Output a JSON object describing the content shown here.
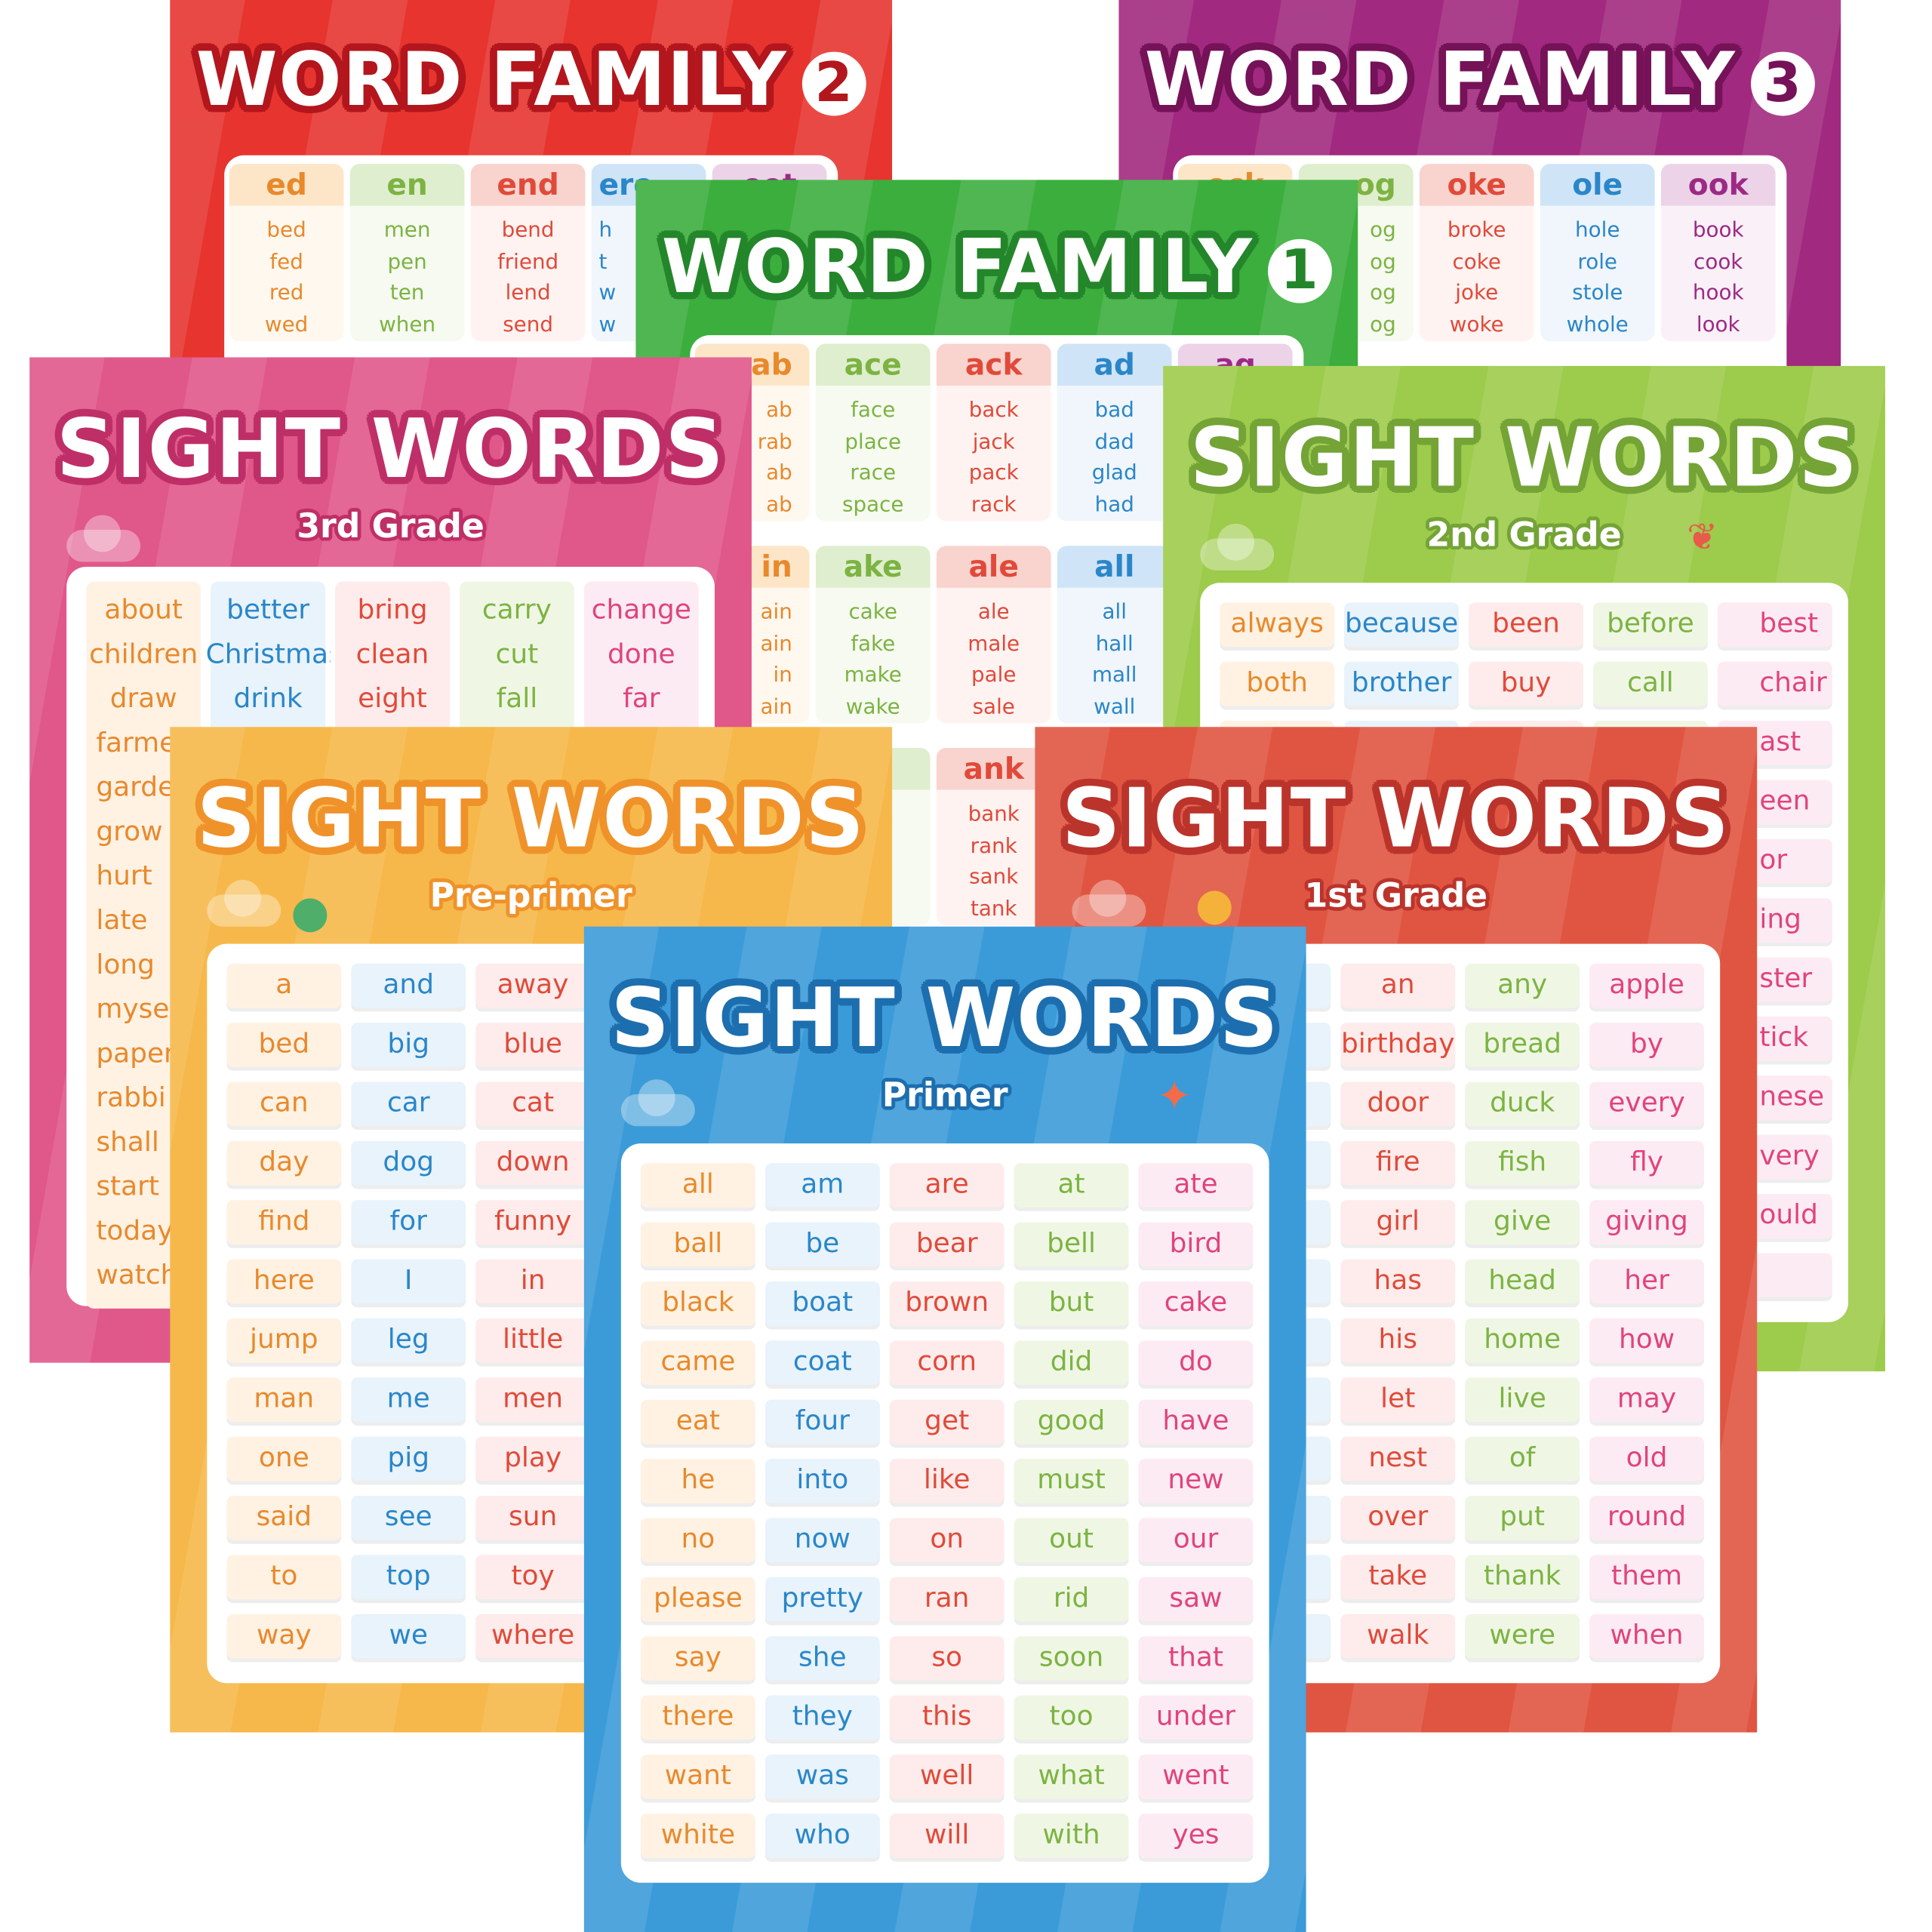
{
  "colors": {
    "orange": "#e8892c",
    "blue": "#2a86c8",
    "red": "#e04a3a",
    "green": "#7cb342",
    "pink": "#e0447a",
    "purple": "#9c2a85"
  },
  "word_family_2": {
    "title": "WORD FAMILY",
    "number": "2",
    "families": [
      {
        "header": "ed",
        "words": [
          "bed",
          "fed",
          "red",
          "wed"
        ]
      },
      {
        "header": "en",
        "words": [
          "men",
          "pen",
          "ten",
          "when"
        ]
      },
      {
        "header": "end",
        "words": [
          "bend",
          "friend",
          "lend",
          "send"
        ]
      },
      {
        "header": "ere",
        "words": [
          "h",
          "t",
          "w",
          "w"
        ]
      },
      {
        "header": "eet",
        "words": [
          "",
          "",
          "",
          ""
        ]
      }
    ]
  },
  "word_family_3": {
    "title": "WORD FAMILY",
    "number": "3",
    "families": [
      {
        "header": "ock",
        "words": [
          "",
          "",
          "",
          ""
        ]
      },
      {
        "header": "og",
        "words": [
          "og",
          "og",
          "og",
          "og"
        ]
      },
      {
        "header": "oke",
        "words": [
          "broke",
          "coke",
          "joke",
          "woke"
        ]
      },
      {
        "header": "ole",
        "words": [
          "hole",
          "role",
          "stole",
          "whole"
        ]
      },
      {
        "header": "ook",
        "words": [
          "book",
          "cook",
          "hook",
          "look"
        ]
      }
    ]
  },
  "word_family_1": {
    "title": "WORD FAMILY",
    "number": "1",
    "sections": [
      [
        {
          "header": "ab",
          "words": [
            "ab",
            "rab",
            "ab",
            "ab"
          ]
        },
        {
          "header": "ace",
          "words": [
            "face",
            "place",
            "race",
            "space"
          ]
        },
        {
          "header": "ack",
          "words": [
            "back",
            "jack",
            "pack",
            "rack"
          ]
        },
        {
          "header": "ad",
          "words": [
            "bad",
            "dad",
            "glad",
            "had"
          ]
        },
        {
          "header": "ag",
          "words": [
            "",
            "",
            "",
            ""
          ]
        }
      ],
      [
        {
          "header": "in",
          "words": [
            "ain",
            "ain",
            "in",
            "ain"
          ]
        },
        {
          "header": "ake",
          "words": [
            "cake",
            "fake",
            "make",
            "wake"
          ]
        },
        {
          "header": "ale",
          "words": [
            "ale",
            "male",
            "pale",
            "sale"
          ]
        },
        {
          "header": "all",
          "words": [
            "all",
            "hall",
            "mall",
            "wall"
          ]
        },
        {
          "header": "",
          "words": [
            "",
            "",
            "",
            ""
          ]
        }
      ],
      [
        {
          "header": "",
          "words": [
            "",
            "",
            "",
            ""
          ]
        },
        {
          "header": "",
          "words": [
            "",
            "",
            "",
            ""
          ]
        },
        {
          "header": "ank",
          "words": [
            "bank",
            "rank",
            "sank",
            "tank"
          ]
        },
        {
          "header": "",
          "words": [
            "",
            "",
            "",
            ""
          ]
        },
        {
          "header": "",
          "words": [
            "",
            "",
            "",
            ""
          ]
        }
      ]
    ]
  },
  "sight_3rd": {
    "title": "SIGHT WORDS",
    "subtitle": "3rd Grade",
    "columns": [
      [
        "about",
        "children",
        "draw",
        "farme",
        "garde",
        "grow",
        "hurt",
        "late",
        "long",
        "mysel",
        "paper",
        "rabbi",
        "shall",
        "start",
        "today",
        "watch"
      ],
      [
        "better",
        "Christmas",
        "drink"
      ],
      [
        "bring",
        "clean",
        "eight"
      ],
      [
        "carry",
        "cut",
        "fall"
      ],
      [
        "change",
        "done",
        "far"
      ]
    ]
  },
  "sight_2nd": {
    "title": "SIGHT WORDS",
    "subtitle": "2nd Grade",
    "columns": [
      [
        "always",
        "both"
      ],
      [
        "because",
        "brother"
      ],
      [
        "been",
        "buy"
      ],
      [
        "before",
        "call"
      ],
      [
        "best",
        "chair",
        "ast",
        "een",
        "or",
        "ing",
        "ster",
        "tick",
        "nese",
        "very",
        "ould",
        ""
      ]
    ]
  },
  "sight_preprimer": {
    "title": "SIGHT WORDS",
    "subtitle": "Pre-primer",
    "columns": [
      [
        "a",
        "bed",
        "can",
        "day",
        "find",
        "here",
        "jump",
        "man",
        "one",
        "said",
        "to",
        "way"
      ],
      [
        "and",
        "big",
        "car",
        "dog",
        "for",
        "I",
        "leg",
        "me",
        "pig",
        "see",
        "top",
        "we"
      ],
      [
        "away",
        "blue",
        "cat",
        "down",
        "funny",
        "in",
        "little",
        "men",
        "play",
        "sun",
        "toy",
        "where"
      ],
      [],
      []
    ]
  },
  "sight_1st": {
    "title": "SIGHT WORDS",
    "subtitle": "1st Grade",
    "columns": [
      [],
      [],
      [
        "an",
        "birthday",
        "door",
        "fire",
        "girl",
        "has",
        "his",
        "let",
        "nest",
        "over",
        "take",
        "walk"
      ],
      [
        "any",
        "bread",
        "duck",
        "fish",
        "give",
        "head",
        "home",
        "live",
        "of",
        "put",
        "thank",
        "were"
      ],
      [
        "apple",
        "by",
        "every",
        "fly",
        "giving",
        "her",
        "how",
        "may",
        "old",
        "round",
        "them",
        "when"
      ]
    ]
  },
  "sight_primer": {
    "title": "SIGHT WORDS",
    "subtitle": "Primer",
    "columns": [
      [
        "all",
        "ball",
        "black",
        "came",
        "eat",
        "he",
        "no",
        "please",
        "say",
        "there",
        "want",
        "white"
      ],
      [
        "am",
        "be",
        "boat",
        "coat",
        "four",
        "into",
        "now",
        "pretty",
        "she",
        "they",
        "was",
        "who"
      ],
      [
        "are",
        "bear",
        "brown",
        "corn",
        "get",
        "like",
        "on",
        "ran",
        "so",
        "this",
        "well",
        "will"
      ],
      [
        "at",
        "bell",
        "but",
        "did",
        "good",
        "must",
        "out",
        "rid",
        "soon",
        "too",
        "what",
        "with"
      ],
      [
        "ate",
        "bird",
        "cake",
        "do",
        "have",
        "new",
        "our",
        "saw",
        "that",
        "under",
        "went",
        "yes"
      ]
    ]
  }
}
